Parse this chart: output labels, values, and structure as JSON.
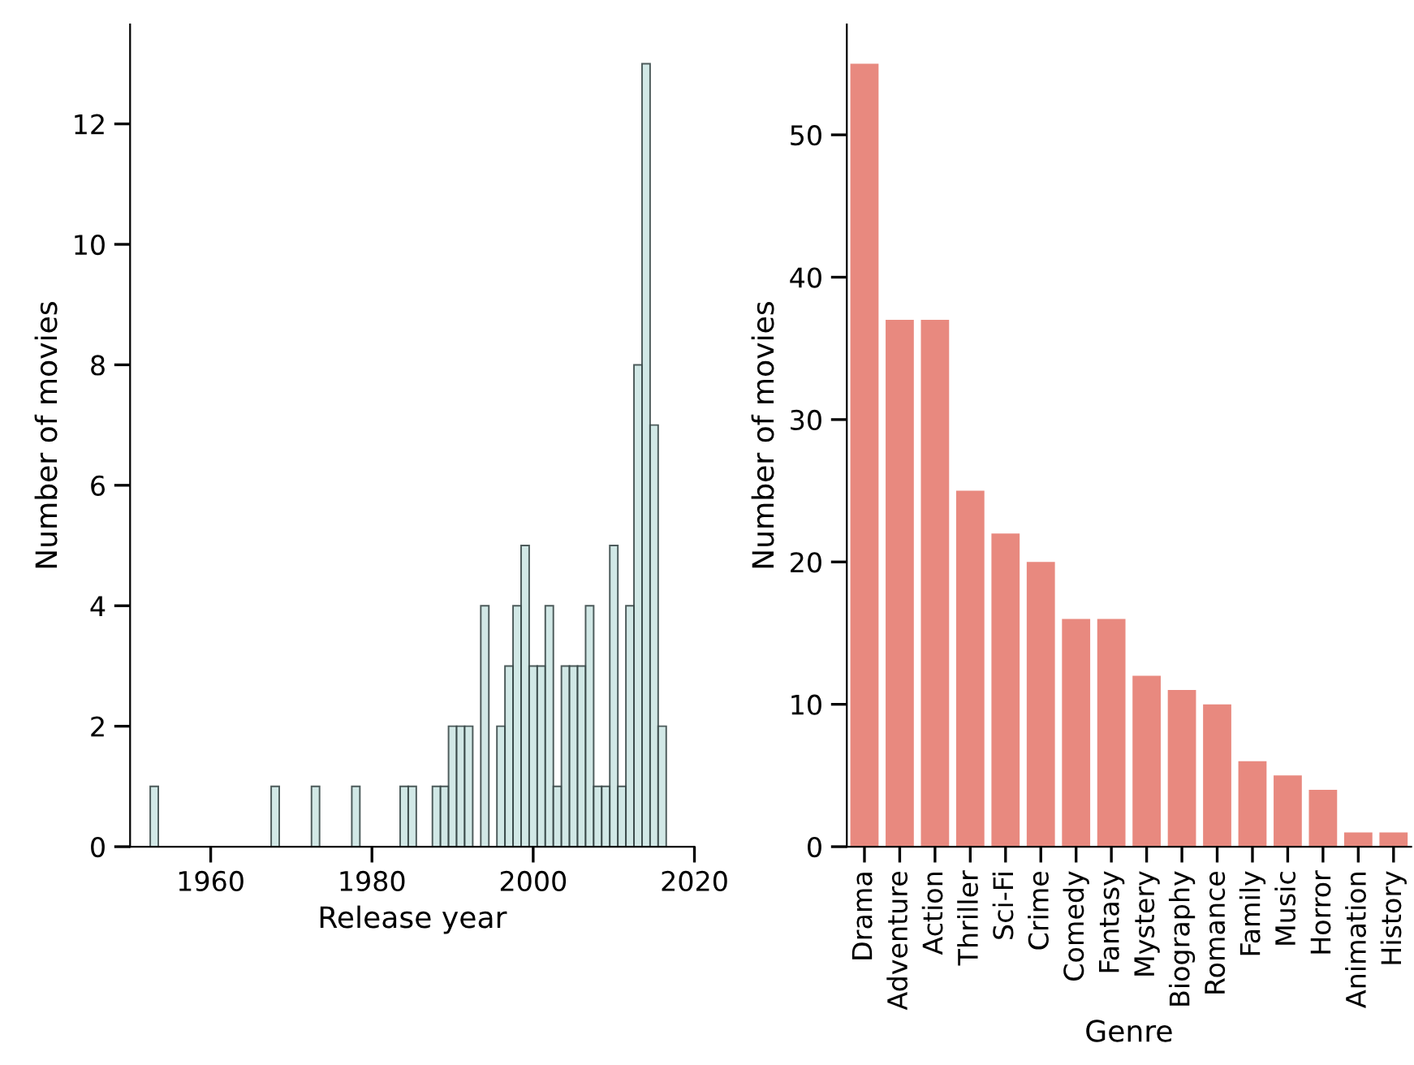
{
  "chart_data": [
    {
      "type": "histogram",
      "xlabel": "Release year",
      "ylabel": "Number of movies",
      "color": "#cde6e4",
      "bins": [
        1952.5,
        1953.5,
        1954.5,
        1955.5,
        1956.5,
        1957.5,
        1958.5,
        1959.5,
        1960.5,
        1961.5,
        1962.5,
        1963.5,
        1964.5,
        1965.5,
        1966.5,
        1967.5,
        1968.5,
        1969.5,
        1970.5,
        1971.5,
        1972.5,
        1973.5,
        1974.5,
        1975.5,
        1976.5,
        1977.5,
        1978.5,
        1979.5,
        1980.5,
        1981.5,
        1982.5,
        1983.5,
        1984.5,
        1985.5,
        1986.5,
        1987.5,
        1988.5,
        1989.5,
        1990.5,
        1991.5,
        1992.5,
        1993.5,
        1994.5,
        1995.5,
        1996.5,
        1997.5,
        1998.5,
        1999.5,
        2000.5,
        2001.5,
        2002.5,
        2003.5,
        2004.5,
        2005.5,
        2006.5,
        2007.5,
        2008.5,
        2009.5,
        2010.5,
        2011.5,
        2012.5,
        2013.5,
        2014.5,
        2015.5,
        2016.5
      ],
      "values": [
        1,
        0,
        0,
        0,
        0,
        0,
        0,
        0,
        0,
        0,
        0,
        0,
        0,
        0,
        0,
        1,
        0,
        0,
        0,
        0,
        1,
        0,
        0,
        0,
        0,
        1,
        0,
        0,
        0,
        0,
        0,
        1,
        1,
        0,
        0,
        1,
        1,
        2,
        2,
        2,
        0,
        4,
        0,
        2,
        3,
        4,
        5,
        3,
        3,
        4,
        1,
        3,
        3,
        3,
        4,
        1,
        1,
        5,
        1,
        4,
        8,
        13,
        7,
        2
      ],
      "xlim": [
        1950,
        2020
      ],
      "xticks": [
        1960,
        1980,
        2000,
        2020
      ],
      "ylim": [
        0,
        13.65
      ],
      "yticks": [
        0,
        2,
        4,
        6,
        8,
        10,
        12
      ],
      "grid": false
    },
    {
      "type": "bar",
      "xlabel": "Genre",
      "ylabel": "Number of movies",
      "color": "#e8897f",
      "categories": [
        "Drama",
        "Adventure",
        "Action",
        "Thriller",
        "Sci-Fi",
        "Crime",
        "Comedy",
        "Fantasy",
        "Mystery",
        "Biography",
        "Romance",
        "Family",
        "Music",
        "Horror",
        "Animation",
        "History"
      ],
      "values": [
        55,
        37,
        37,
        25,
        22,
        20,
        16,
        16,
        12,
        11,
        10,
        6,
        5,
        4,
        1,
        1
      ],
      "ylim": [
        0,
        57.75
      ],
      "yticks": [
        0,
        10,
        20,
        30,
        40,
        50
      ],
      "grid": false
    }
  ]
}
